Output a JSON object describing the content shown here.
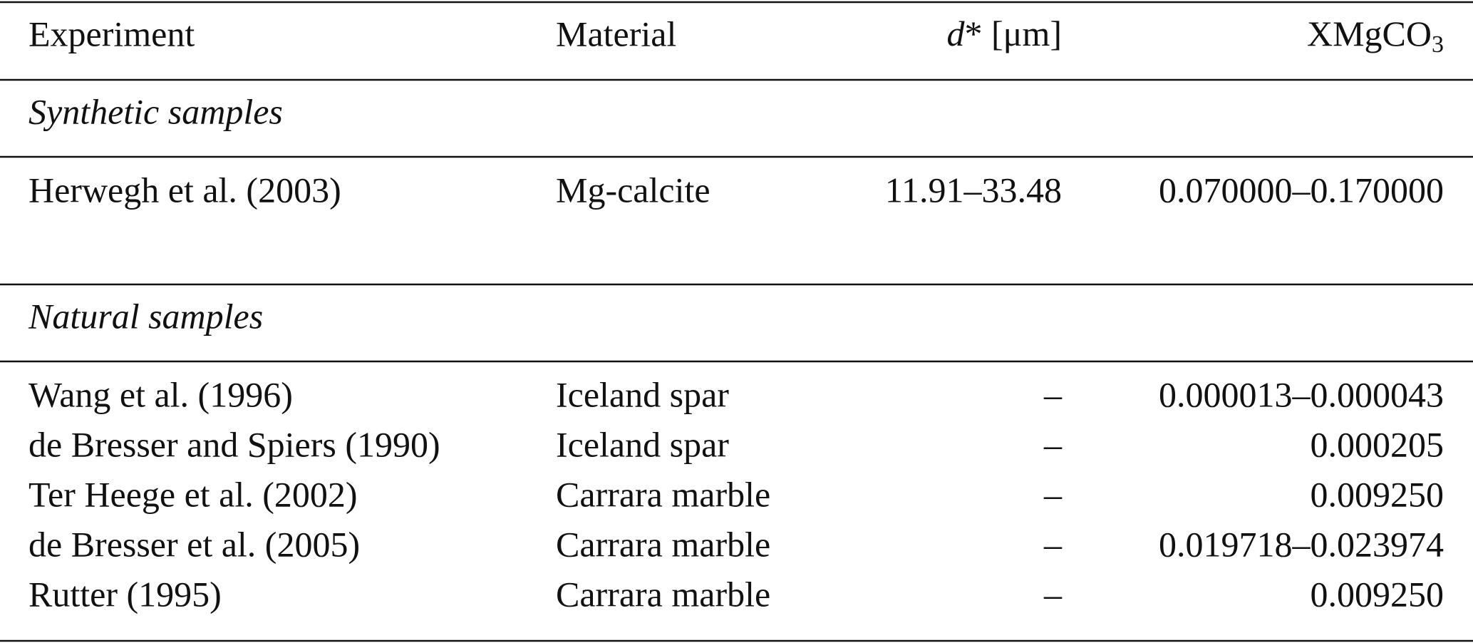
{
  "table": {
    "header": [
      "Experiment",
      "Material",
      {
        "italic": "d",
        "text": "* [μm]"
      },
      {
        "text": "XMgCO",
        "sub": "3"
      }
    ],
    "sections": [
      {
        "title": "Synthetic samples",
        "rows": [
          [
            "Herwegh et al. (2003)",
            "Mg-calcite",
            "11.91–33.48",
            "0.070000–0.170000"
          ]
        ]
      },
      {
        "title": "Natural samples",
        "rows": [
          [
            "Wang et al. (1996)",
            "Iceland spar",
            "–",
            "0.000013–0.000043"
          ],
          [
            "de Bresser and Spiers (1990)",
            "Iceland spar",
            "–",
            "0.000205"
          ],
          [
            "Ter Heege et al. (2002)",
            "Carrara marble",
            "–",
            "0.009250"
          ],
          [
            "de Bresser et al. (2005)",
            "Carrara marble",
            "–",
            "0.019718–0.023974"
          ],
          [
            "Rutter (1995)",
            "Carrara marble",
            "–",
            "0.009250"
          ]
        ]
      }
    ]
  }
}
